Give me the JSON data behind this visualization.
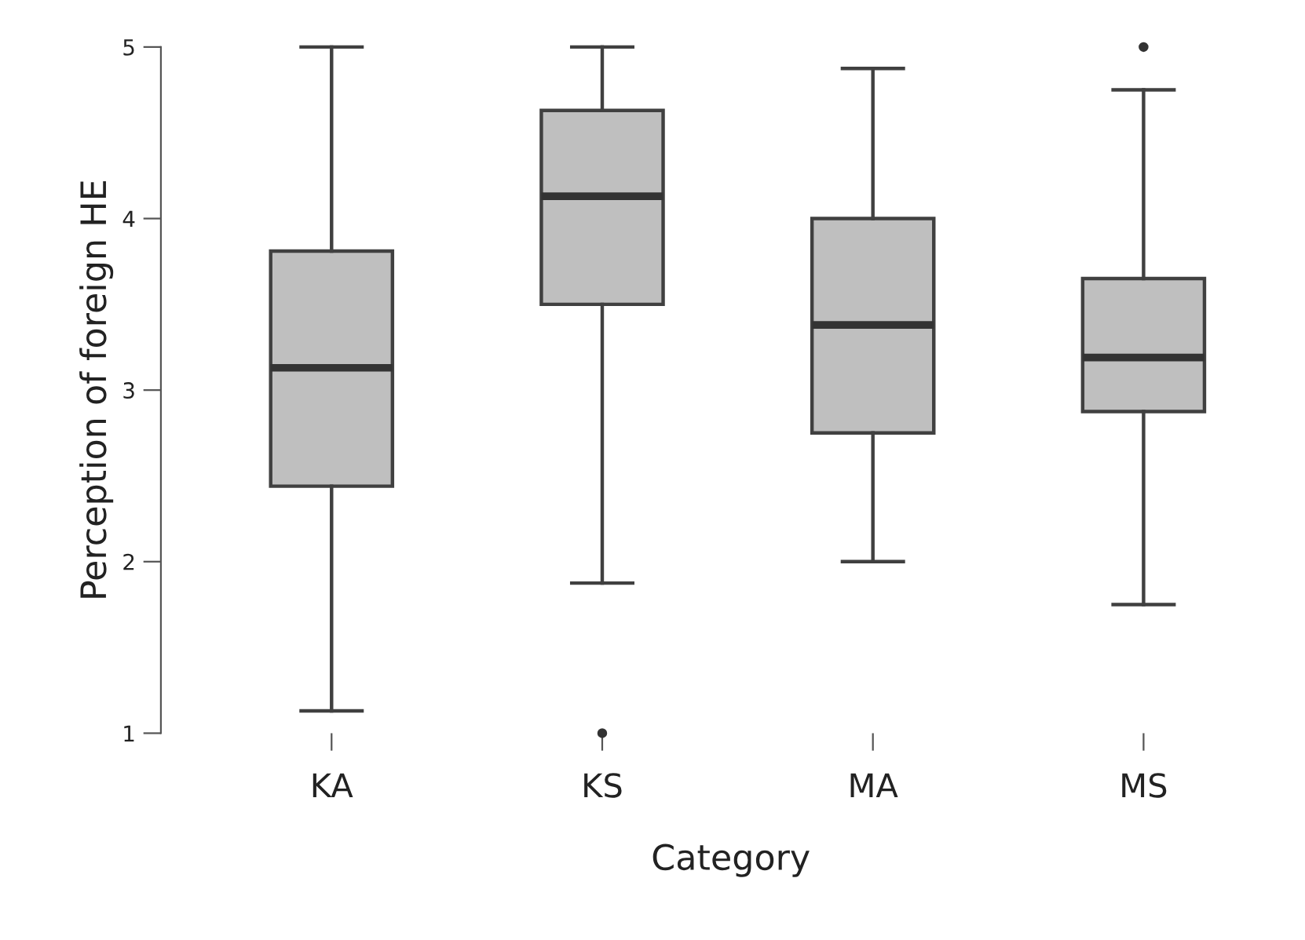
{
  "chart_data": {
    "type": "box",
    "xlabel": "Category",
    "ylabel": "Perception of foreign HE",
    "categories": [
      "KA",
      "KS",
      "MA",
      "MS"
    ],
    "boxes": [
      {
        "low": 1.13,
        "q1": 2.44,
        "median": 3.13,
        "q3": 3.81,
        "high": 5
      },
      {
        "low": 1.875,
        "q1": 3.5,
        "median": 4.13,
        "q3": 4.63,
        "high": 5,
        "outliers": [
          1
        ]
      },
      {
        "low": 2,
        "q1": 2.75,
        "median": 3.38,
        "q3": 4,
        "high": 4.875
      },
      {
        "low": 1.75,
        "q1": 2.875,
        "median": 3.19,
        "q3": 3.65,
        "high": 4.75,
        "outliers": [
          5
        ]
      }
    ],
    "color": "#bfbfbf",
    "ylim": [
      1,
      5
    ],
    "yticks": [
      1,
      2,
      3,
      4,
      5
    ],
    "grid": false
  }
}
